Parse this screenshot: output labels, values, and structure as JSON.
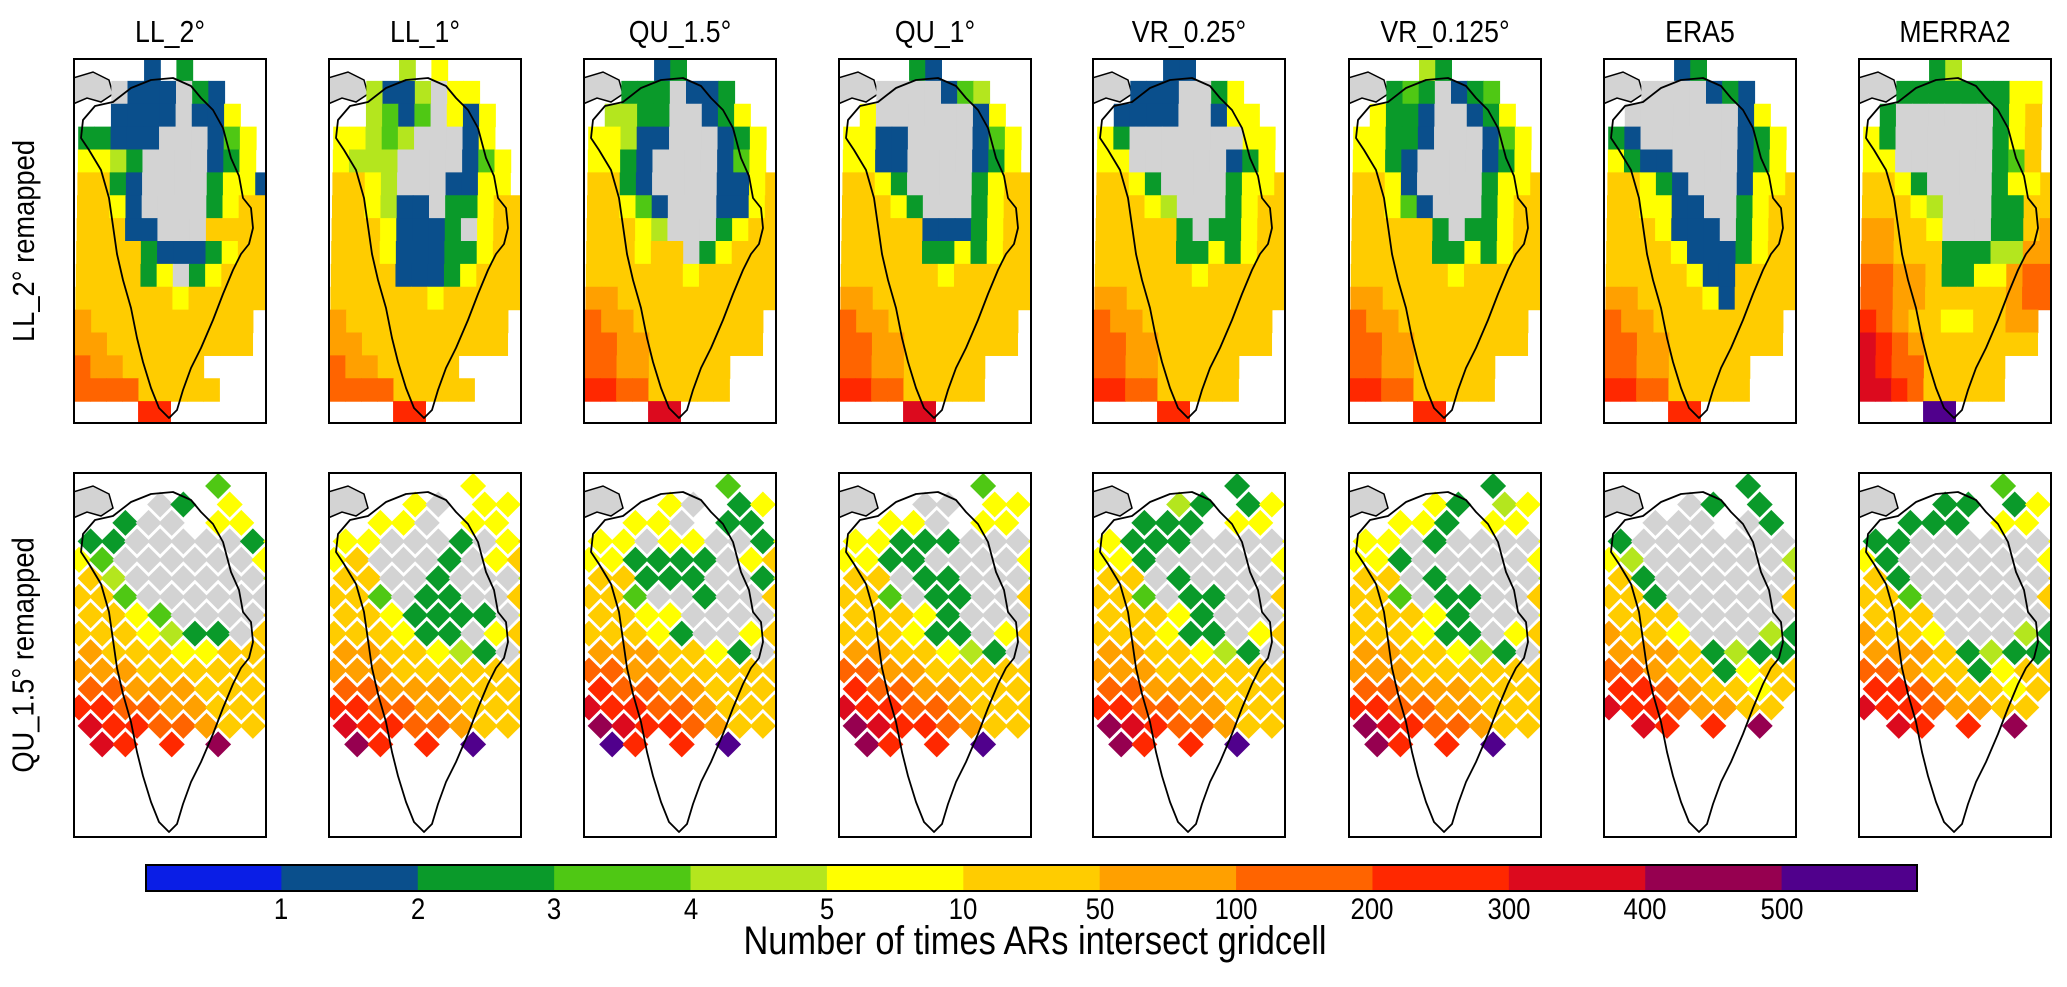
{
  "chart_data": {
    "type": "heatmap",
    "title": "",
    "colorbar": {
      "label": "Number of times ARs intersect gridcell",
      "tick_labels": [
        "1",
        "2",
        "3",
        "4",
        "5",
        "10",
        "50",
        "100",
        "200",
        "300",
        "400",
        "500"
      ],
      "bin_colors": [
        "#0a1ee6",
        "#0a4f8c",
        "#0a9a2a",
        "#4fc814",
        "#b4e61e",
        "#ffff00",
        "#ffcc00",
        "#ffa000",
        "#ff6400",
        "#ff2800",
        "#dc0a1e",
        "#960050",
        "#50008c"
      ],
      "bin_ranges": [
        "<1",
        "1-2",
        "2-3",
        "3-4",
        "4-5",
        "5-10",
        "10-50",
        "50-100",
        "100-200",
        "200-300",
        "300-400",
        "400-500",
        ">500"
      ]
    },
    "columns": [
      "LL_2°",
      "LL_1°",
      "QU_1.5°",
      "QU_1°",
      "VR_0.25°",
      "VR_0.125°",
      "ERA5",
      "MERRA2"
    ],
    "rows": [
      "LL_2° remapped",
      "QU_1.5° remapped"
    ],
    "land_color": "#d3d3d3",
    "panels": [
      {
        "row": 0,
        "col": 0,
        "grid": [
          "....1.2.....",
          "..g111g21...",
          "..1111g115..",
          "22111ggg135.",
          "5542gggg125.",
          "6621gggg2551",
          "6651gggg2566",
          "66611ggg6666",
          "666621112566",
          "666625g25666",
          "666666566666",
          "76666666666.",
          "77666666666.",
          "87766666.....",
          "888866666...",
          "....99......"
        ]
      },
      {
        "row": 0,
        "col": 1,
        "grid": [
          "....4.5.....",
          "..4114g55...",
          "..4313g515..",
          "55434ggg15..",
          "5444gggg135.",
          "6654ggg1155.",
          "665411g22566",
          "66651112g566",
          "666511122566",
          "666611125666",
          "666666566666",
          "76666666666.",
          "77666666666.",
          "87766666.....",
          "888866666...",
          "....99......"
        ]
      },
      {
        "row": 0,
        "col": 2,
        "grid": [
          "....12......",
          "..222g112...",
          ".4422gg125..",
          "55411ggg125.",
          "5521gggg135.",
          "6621gggg1156",
          "66531ggg1156",
          "66654ggg2566",
          "666566g25666",
          "666666566666",
          "776666666666",
          "87766666666.",
          "88776666666.",
          "887766666.....",
          "998866666...",
          "....aa......"
        ]
      },
      {
        "row": 0,
        "col": 3,
        "grid": [
          "....21......",
          "..gggg134...",
          ".5gggggg15..",
          "5511gggg135.",
          "5511gggg125.",
          "6652gggg2566",
          "66652ggg2566",
          "666661112566",
          "666662252566",
          "666666566666",
          "776666666666",
          "87766666666.",
          "88776666666.",
          "887766666.....",
          "998866666...",
          "....aa......"
        ]
      },
      {
        "row": 0,
        "col": 4,
        "grid": [
          "....11......",
          "..111gg25...",
          ".1111gg155..",
          "52ggggggg55.",
          "55gggggg125.",
          "6652gggg2556",
          "66654ggg2566",
          "666662g22566",
          "666662252566",
          "666666566666",
          "776666666666",
          "87766666666.",
          "88776666666.",
          "887766666.....",
          "998866666...",
          "....99......"
        ]
      },
      {
        "row": 0,
        "col": 5,
        "grid": [
          "....42......",
          "..232g123...",
          ".5221gg125..",
          "55221ggg135.",
          "5521gggg125.",
          "6651gggg2556",
          "66531ggg2566",
          "666662g22566",
          "666662252566",
          "666666566666",
          "776666666666",
          "87766666666.",
          "88776666666.",
          "887766666.....",
          "998866666...",
          "....99......"
        ]
      },
      {
        "row": 0,
        "col": 6,
        "grid": [
          "....12......",
          "..gggg121...",
          ".ggggggg15..",
          "21gggggg125.",
          "5211gggg125.",
          "66521ggg1556",
          "665511gg2566",
          "6665111g2566",
          "666651112566",
          "666665116666",
          "776666516666",
          "87766666666.",
          "88776666666.",
          "887766666.....",
          "998866666...",
          "....99......"
        ]
      },
      {
        "row": 0,
        "col": 7,
        "grid": [
          "....24......",
          "..222222255.",
          ".2gggggg256..",
          "52gggggg256.",
          "55gggggg236.",
          "6652gggg2556",
          "66654ggg2266",
          "77665ggg2267",
          "776662224477",
          "887762255788",
          "887766666788",
          "98766556677.",
          "a9876666666.",
          "a98866666.....",
          "aa9866666...",
          "....cc......"
        ]
      },
      {
        "row": 1,
        "col": 0,
        "grid": [
          "......3.....",
          "...g2.5.....",
          "..2gg.55....",
          "22ggggg25...",
          "53gggggg56..",
          "64gggggg46..",
          "663gggggg66.",
          "6653gggg666.",
          "6665422g666.",
          "76665566666.",
          "7776666666..",
          "8877766666..",
          "9988776666..",
          "a9988766....",
          ".a9.9.b....."
        ]
      },
      {
        "row": 1,
        "col": 1,
        "grid": [
          "......5.....",
          "...5g.55....",
          "..55g.55....",
          "55ggg2g56...",
          "56ggg2g56...",
          "66gg2ggg46..",
          "663g22gg66..",
          "6652222g566.",
          "666522g5666.",
          "7766542g666.",
          "7776666666..",
          "8877766666..",
          "9988776666..",
          "a9988766....",
          ".b9.9.c....."
        ]
      },
      {
        "row": 1,
        "col": 2,
        "grid": [
          "......3.....",
          "...5g.25....",
          "..55g.22....",
          "55g55gg25...",
          "552222g56...",
          "66222gg246..",
          "663gg2gg66..",
          "6655gggg566.",
          "66652gg5666.",
          "7776652g666.",
          "8877666666..",
          "9887766666..",
          "a998876666..",
          "ba998766....",
          ".c9.9.c....."
        ]
      },
      {
        "row": 1,
        "col": 3,
        "grid": [
          "......3.....",
          "...gg.55....",
          "..55g.55....",
          "55222ggg5...",
          "5522gggg56..",
          "66g22ggg46..",
          "663g22gg66..",
          "66652ggg566.",
          "666522g5666.",
          "7766542g666.",
          "8877666666..",
          "9887766666..",
          "a998876666..",
          "ba998766....",
          ".b9.9.c....."
        ]
      },
      {
        "row": 1,
        "col": 4,
        "grid": [
          "......2.....",
          "...42.25....",
          "..222.55....",
          "5222gggg5...",
          "552ggggg56..",
          "66g2gggg46..",
          "663g22gg66..",
          "66652ggg566.",
          "666522g5666.",
          "7766542g666.",
          "7776666666..",
          "8877766666..",
          "9988776666..",
          "ba988766....",
          ".b9.9.c....."
        ]
      },
      {
        "row": 1,
        "col": 5,
        "grid": [
          "......2.....",
          "...52.45....",
          "..552.55....",
          "55g2gggg5...",
          "552ggggg56..",
          "66g2gggg46..",
          "663g22gg66..",
          "66652ggg566.",
          "666522g5666.",
          "7766542g666.",
          "7776666666..",
          "8877766666..",
          "9988776666..",
          "ba988766....",
          ".b9.9.c....."
        ]
      },
      {
        "row": 1,
        "col": 6,
        "grid": [
          "......2.....",
          "...g2.2.....",
          "..ggg.g2....",
          "2gggggggg...",
          "54gggggg46..",
          "62gggggg66..",
          "662ggggg66..",
          "666gggggg6..",
          "7665ggg4268.",
          "77762422268.",
          "8876625666..",
          "9987665666..",
          "a9987766....",
          ".a9.9.b.....",
          "............"
        ]
      },
      {
        "row": 1,
        "col": 7,
        "grid": [
          "......3.....",
          "...22.25....",
          "..222.55....",
          "22gggggg5...",
          "52gggggg56..",
          "62gggggg66..",
          "663ggggg66..",
          "666gggggg6..",
          "7665ggg4266.",
          "77762422266.",
          "8876625666..",
          "9987665666..",
          "a9987766....",
          ".a9.9.b.....",
          "............"
        ]
      }
    ]
  }
}
